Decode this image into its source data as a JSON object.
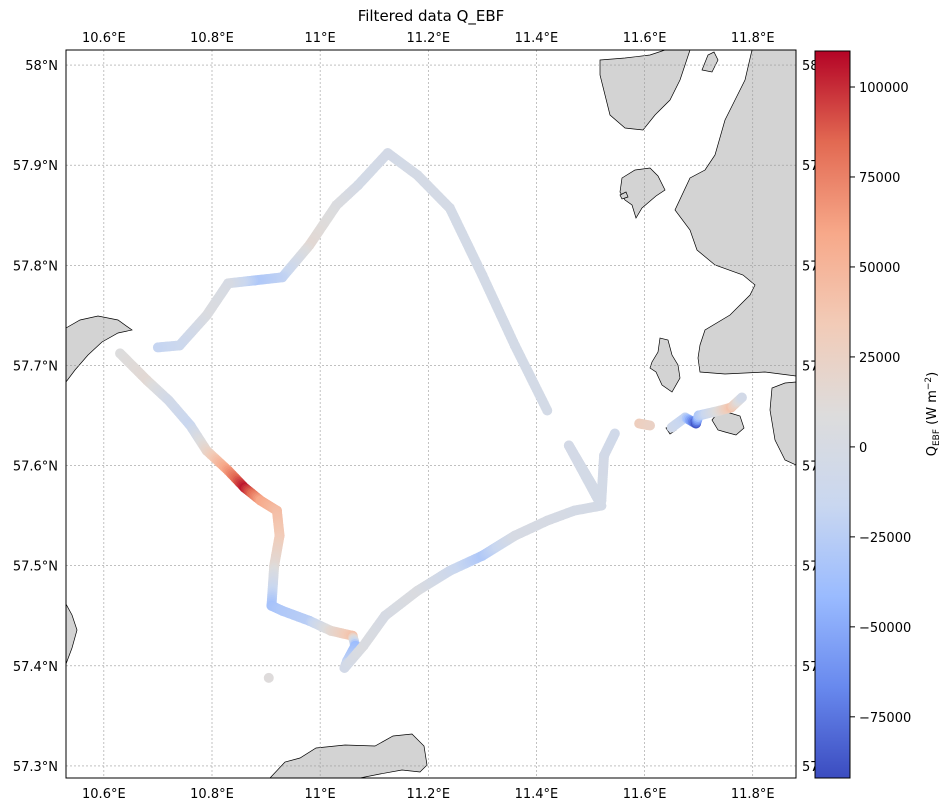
{
  "title": "Filtered data Q_EBF",
  "colorbar": {
    "label_main": "Q",
    "label_sub": "EBF",
    "label_unit": " (W m",
    "label_exp": "−2",
    "label_close": ")",
    "min": -92000,
    "max": 110000,
    "ticks": [
      {
        "value": 100000,
        "label": "100000"
      },
      {
        "value": 75000,
        "label": "75000"
      },
      {
        "value": 50000,
        "label": "50000"
      },
      {
        "value": 25000,
        "label": "25000"
      },
      {
        "value": 0,
        "label": "0"
      },
      {
        "value": -25000,
        "label": "−25000"
      },
      {
        "value": -50000,
        "label": "−50000"
      },
      {
        "value": -75000,
        "label": "−75000"
      }
    ],
    "colormap": "coolwarm",
    "colors": [
      "#3b4cc0",
      "#6889ee",
      "#9abbff",
      "#c9d7f0",
      "#dddcdc",
      "#f2cbb7",
      "#f7a889",
      "#e26952",
      "#b40426"
    ]
  },
  "map": {
    "lon_range": [
      10.53,
      11.88
    ],
    "lat_range": [
      57.288,
      58.015
    ],
    "lon_ticks": [
      {
        "value": 10.6,
        "label": "10.6°E"
      },
      {
        "value": 10.8,
        "label": "10.8°E"
      },
      {
        "value": 11.0,
        "label": "11°E"
      },
      {
        "value": 11.2,
        "label": "11.2°E"
      },
      {
        "value": 11.4,
        "label": "11.4°E"
      },
      {
        "value": 11.6,
        "label": "11.6°E"
      },
      {
        "value": 11.8,
        "label": "11.8°E"
      }
    ],
    "lat_ticks": [
      {
        "value": 58.0,
        "label": "58°N"
      },
      {
        "value": 57.9,
        "label": "57.9°N"
      },
      {
        "value": 57.8,
        "label": "57.8°N"
      },
      {
        "value": 57.7,
        "label": "57.7°N"
      },
      {
        "value": 57.6,
        "label": "57.6°N"
      },
      {
        "value": 57.5,
        "label": "57.5°N"
      },
      {
        "value": 57.4,
        "label": "57.4°N"
      },
      {
        "value": 57.3,
        "label": "57.3°N"
      }
    ],
    "right_lat_labels": [
      {
        "value": 58.0,
        "label": "58"
      },
      {
        "value": 57.9,
        "label": "57"
      },
      {
        "value": 57.8,
        "label": "57"
      },
      {
        "value": 57.7,
        "label": "57"
      },
      {
        "value": 57.6,
        "label": "57"
      },
      {
        "value": 57.5,
        "label": "57"
      },
      {
        "value": 57.4,
        "label": "57"
      },
      {
        "value": 57.3,
        "label": "57"
      }
    ],
    "land_color": "#d3d3d3",
    "grid": true
  },
  "chart_data": {
    "type": "scatter",
    "title": "Filtered data Q_EBF",
    "xlabel": "",
    "ylabel": "",
    "x_unit": "longitude (°E)",
    "y_unit": "latitude (°N)",
    "color_variable": "Q_EBF (W m−2)",
    "tracks": [
      {
        "points": [
          [
            11.42,
            57.655,
            -3000
          ],
          [
            11.36,
            57.72,
            -3000
          ],
          [
            11.3,
            57.79,
            -3000
          ],
          [
            11.24,
            57.857,
            -3000
          ],
          [
            11.18,
            57.89,
            -2000
          ],
          [
            11.125,
            57.912,
            -4000
          ],
          [
            11.07,
            57.88,
            -3000
          ],
          [
            11.03,
            57.86,
            5000
          ],
          [
            10.98,
            57.82,
            15000
          ],
          [
            10.93,
            57.788,
            -20000
          ],
          [
            10.88,
            57.785,
            -30000
          ],
          [
            10.83,
            57.782,
            0
          ],
          [
            10.79,
            57.75,
            5000
          ],
          [
            10.74,
            57.72,
            -12000
          ],
          [
            10.7,
            57.718,
            -18000
          ]
        ]
      },
      {
        "points": [
          [
            10.63,
            57.712,
            8000
          ],
          [
            10.68,
            57.685,
            15000
          ],
          [
            10.72,
            57.665,
            -5000
          ],
          [
            10.76,
            57.64,
            -15000
          ],
          [
            10.79,
            57.615,
            20000
          ],
          [
            10.83,
            57.595,
            65000
          ],
          [
            10.86,
            57.578,
            105000
          ],
          [
            10.89,
            57.565,
            60000
          ],
          [
            10.92,
            57.555,
            45000
          ],
          [
            10.925,
            57.53,
            35000
          ],
          [
            10.915,
            57.5,
            15000
          ],
          [
            10.91,
            57.46,
            -35000
          ],
          [
            10.93,
            57.455,
            -30000
          ],
          [
            10.98,
            57.445,
            -25000
          ],
          [
            11.02,
            57.435,
            15000
          ],
          [
            11.06,
            57.43,
            40000
          ],
          [
            11.065,
            57.42,
            -40000
          ],
          [
            11.05,
            57.405,
            -25000
          ],
          [
            11.045,
            57.398,
            -5000
          ],
          [
            11.08,
            57.42,
            5000
          ],
          [
            11.12,
            57.45,
            0
          ],
          [
            11.18,
            57.475,
            5000
          ],
          [
            11.24,
            57.495,
            -10000
          ],
          [
            11.3,
            57.51,
            -30000
          ],
          [
            11.36,
            57.53,
            0
          ],
          [
            11.42,
            57.545,
            0
          ],
          [
            11.47,
            57.555,
            -2000
          ],
          [
            11.52,
            57.56,
            -3000
          ],
          [
            11.46,
            57.62,
            -4000
          ],
          [
            11.52,
            57.565,
            -3000
          ],
          [
            11.525,
            57.61,
            -4000
          ],
          [
            11.545,
            57.632,
            -8000
          ]
        ]
      },
      {
        "points": [
          [
            11.59,
            57.642,
            30000
          ],
          [
            11.61,
            57.64,
            25000
          ]
        ]
      },
      {
        "points": [
          [
            11.65,
            57.638,
            -8000
          ],
          [
            11.675,
            57.648,
            -20000
          ],
          [
            11.695,
            57.642,
            -88000
          ],
          [
            11.7,
            57.65,
            -30000
          ],
          [
            11.74,
            57.655,
            15000
          ],
          [
            11.76,
            57.658,
            40000
          ],
          [
            11.78,
            57.668,
            -5000
          ]
        ]
      },
      {
        "points": [
          [
            10.905,
            57.388,
            10000
          ]
        ]
      }
    ]
  }
}
